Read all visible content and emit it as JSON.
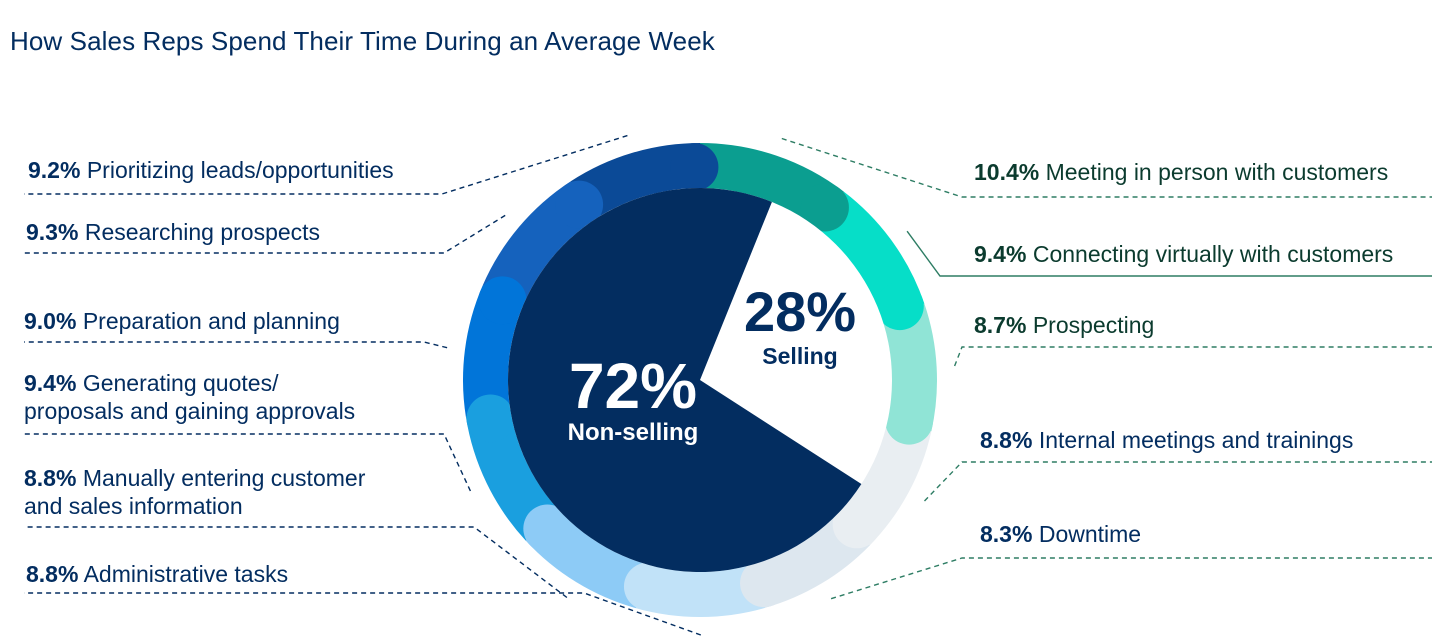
{
  "chart_data": {
    "type": "pie",
    "title": "How Sales Reps Spend Their Time During an Average Week",
    "summary": [
      {
        "name": "Non-selling",
        "value": 72,
        "label": "72%"
      },
      {
        "name": "Selling",
        "value": 28,
        "label": "28%"
      }
    ],
    "activities": [
      {
        "category": "Selling",
        "name": "Meeting in person with customers",
        "value": 10.4,
        "pct_label": "10.4%",
        "color": "#0b9e90"
      },
      {
        "category": "Selling",
        "name": "Connecting virtually with customers",
        "value": 9.4,
        "pct_label": "9.4%",
        "color": "#06dec8"
      },
      {
        "category": "Selling",
        "name": "Prospecting",
        "value": 8.7,
        "pct_label": "8.7%",
        "color": "#90e4d6"
      },
      {
        "category": "Non-selling",
        "name": "Internal meetings and trainings",
        "value": 8.8,
        "pct_label": "8.8%",
        "color": "#e9eef2"
      },
      {
        "category": "Non-selling",
        "name": "Downtime",
        "value": 8.3,
        "pct_label": "8.3%",
        "color": "#dde7ef"
      },
      {
        "category": "Non-selling",
        "name": "Administrative tasks",
        "value": 8.8,
        "pct_label": "8.8%",
        "color": "#c1e2f8"
      },
      {
        "category": "Non-selling",
        "name": "Manually entering customer and sales information",
        "line1": "Manually entering customer",
        "line2": "and sales information",
        "value": 8.8,
        "pct_label": "8.8%",
        "color": "#8dcbf6"
      },
      {
        "category": "Non-selling",
        "name": "Generating quotes/ proposals and gaining approvals",
        "line1": "Generating quotes/",
        "line2": "proposals and gaining approvals",
        "value": 9.4,
        "pct_label": "9.4%",
        "color": "#1a9fdf"
      },
      {
        "category": "Non-selling",
        "name": "Preparation and planning",
        "value": 9.0,
        "pct_label": "9.0%",
        "color": "#0175d9"
      },
      {
        "category": "Non-selling",
        "name": "Researching prospects",
        "value": 9.3,
        "pct_label": "9.3%",
        "color": "#1562bd"
      },
      {
        "category": "Non-selling",
        "name": "Prioritizing leads/opportunities",
        "value": 9.2,
        "pct_label": "9.2%",
        "color": "#0b4a97"
      }
    ]
  },
  "colors": {
    "title": "#032d60",
    "non_selling_pie": "#032d60",
    "selling_pie": "#ffffff",
    "leader_left": "#032d60",
    "leader_right": "#2e7d64"
  }
}
